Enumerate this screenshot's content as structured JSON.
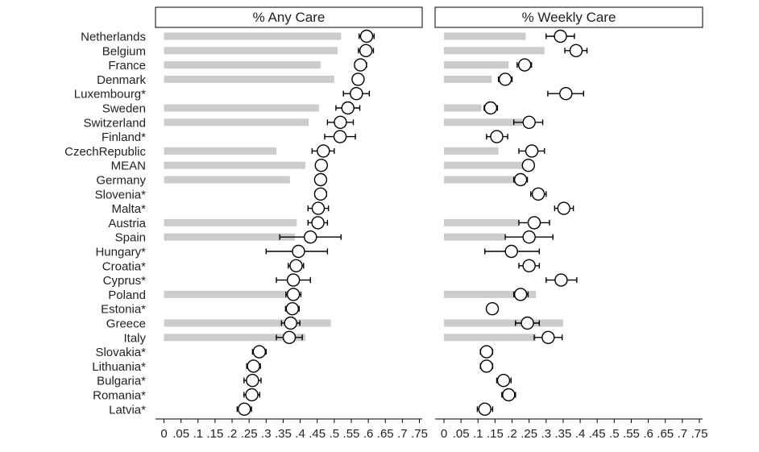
{
  "chart_data": {
    "type": "bar",
    "categories": [
      "Netherlands",
      "Belgium",
      "France",
      "Denmark",
      "Luxembourg*",
      "Sweden",
      "Switzerland",
      "Finland*",
      "CzechRepublic",
      "MEAN",
      "Germany",
      "Slovenia*",
      "Malta*",
      "Austria",
      "Spain",
      "Hungary*",
      "Croatia*",
      "Cyprus*",
      "Poland",
      "Estonia*",
      "Greece",
      "Italy",
      "Slovakia*",
      "Lithuania*",
      "Bulgaria*",
      "Romania*",
      "Latvia*"
    ],
    "x_ticks": [
      "0",
      ".05",
      ".1",
      ".15",
      ".2",
      ".25",
      ".3",
      ".35",
      ".4",
      ".45",
      ".5",
      ".55",
      ".6",
      ".65",
      ".7",
      ".75"
    ],
    "xlim": [
      0,
      0.75
    ],
    "panels": [
      {
        "title": "% Any Care",
        "bar_values": [
          0.52,
          0.51,
          0.46,
          0.5,
          null,
          0.455,
          0.425,
          null,
          0.33,
          0.415,
          0.37,
          null,
          null,
          0.39,
          0.385,
          null,
          null,
          null,
          0.39,
          null,
          0.49,
          0.415,
          null,
          null,
          null,
          null,
          null
        ],
        "estimates": [
          0.595,
          0.593,
          0.577,
          0.57,
          0.565,
          0.54,
          0.518,
          0.517,
          0.468,
          0.462,
          0.46,
          0.46,
          0.453,
          0.452,
          0.43,
          0.395,
          0.388,
          0.38,
          0.38,
          0.377,
          0.372,
          0.368,
          0.28,
          0.263,
          0.26,
          0.258,
          0.236
        ],
        "ci_low": [
          0.573,
          0.571,
          0.56,
          0.557,
          0.527,
          0.505,
          0.48,
          0.472,
          0.435,
          null,
          0.445,
          0.443,
          0.423,
          0.423,
          0.34,
          0.3,
          0.365,
          0.33,
          0.358,
          0.357,
          0.345,
          0.33,
          0.26,
          0.243,
          0.235,
          0.235,
          0.215
        ],
        "ci_high": [
          0.617,
          0.615,
          0.595,
          0.584,
          0.603,
          0.575,
          0.556,
          0.562,
          0.5,
          null,
          0.475,
          0.477,
          0.483,
          0.48,
          0.52,
          0.48,
          0.41,
          0.43,
          0.402,
          0.397,
          0.399,
          0.406,
          0.3,
          0.283,
          0.285,
          0.281,
          0.257
        ]
      },
      {
        "title": "% Weekly Care",
        "bar_values": [
          0.24,
          0.295,
          0.19,
          0.14,
          null,
          0.11,
          0.23,
          null,
          0.16,
          0.24,
          0.23,
          null,
          null,
          0.22,
          0.18,
          null,
          null,
          null,
          0.27,
          null,
          0.35,
          0.27,
          null,
          null,
          null,
          null,
          null
        ],
        "estimates": [
          0.342,
          0.388,
          0.237,
          0.18,
          0.358,
          0.137,
          0.25,
          0.155,
          0.258,
          0.248,
          0.225,
          0.277,
          0.352,
          0.265,
          0.25,
          0.198,
          0.25,
          0.344,
          0.225,
          0.142,
          0.245,
          0.306,
          0.125,
          0.125,
          0.175,
          0.19,
          0.12
        ],
        "ci_low": [
          0.3,
          0.355,
          0.215,
          0.16,
          0.305,
          0.118,
          0.205,
          0.125,
          0.22,
          null,
          0.205,
          0.255,
          0.325,
          0.22,
          0.18,
          0.12,
          0.22,
          0.3,
          0.205,
          0.13,
          0.21,
          0.265,
          0.107,
          0.107,
          0.155,
          0.17,
          0.098
        ],
        "ci_high": [
          0.383,
          0.42,
          0.257,
          0.2,
          0.41,
          0.157,
          0.29,
          0.187,
          0.295,
          null,
          0.245,
          0.3,
          0.38,
          0.31,
          0.32,
          0.28,
          0.28,
          0.39,
          0.247,
          0.155,
          0.28,
          0.347,
          0.143,
          0.143,
          0.197,
          0.21,
          0.143
        ]
      }
    ],
    "colors": {
      "bar": "#cccccc",
      "marker_fill": "#ffffff",
      "marker_stroke": "#000000",
      "ci_line": "#000000"
    }
  }
}
